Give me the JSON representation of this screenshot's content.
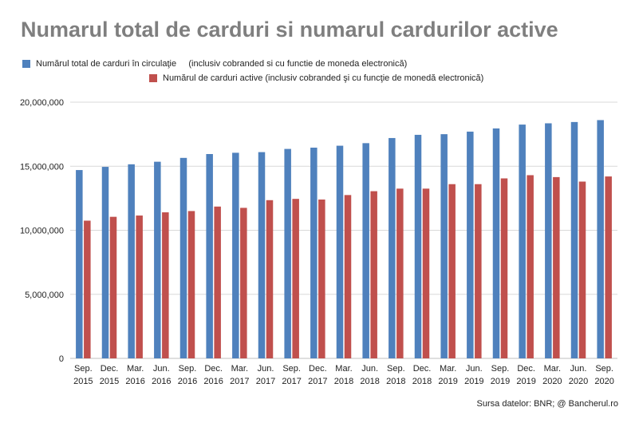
{
  "chart_data": {
    "type": "bar",
    "title": "Numarul total de carduri si numarul cardurilor active",
    "xlabel": "",
    "ylabel": "",
    "ylim": [
      0,
      20000000
    ],
    "yticks": [
      0,
      5000000,
      10000000,
      15000000,
      20000000
    ],
    "ytick_labels": [
      "0",
      "5,000,000",
      "10,000,000",
      "15,000,000",
      "20,000,000"
    ],
    "grid": true,
    "legend_placement": "top-left",
    "categories": [
      [
        "Sep.",
        "2015"
      ],
      [
        "Dec.",
        "2015"
      ],
      [
        "Mar.",
        "2016"
      ],
      [
        "Jun.",
        "2016"
      ],
      [
        "Sep.",
        "2016"
      ],
      [
        "Dec.",
        "2016"
      ],
      [
        "Mar.",
        "2017"
      ],
      [
        "Jun.",
        "2017"
      ],
      [
        "Sep.",
        "2017"
      ],
      [
        "Dec.",
        "2017"
      ],
      [
        "Mar.",
        "2018"
      ],
      [
        "Jun.",
        "2018"
      ],
      [
        "Sep.",
        "2018"
      ],
      [
        "Dec.",
        "2018"
      ],
      [
        "Mar.",
        "2019"
      ],
      [
        "Jun.",
        "2019"
      ],
      [
        "Sep.",
        "2019"
      ],
      [
        "Dec.",
        "2019"
      ],
      [
        "Mar.",
        "2020"
      ],
      [
        "Jun.",
        "2020"
      ],
      [
        "Sep.",
        "2020"
      ]
    ],
    "series": [
      {
        "name": "Numărul total de carduri în circulaţie     (inclusiv cobranded si cu functie de moneda electronică)",
        "color": "#4f81bd",
        "values": [
          14700000,
          14950000,
          15150000,
          15350000,
          15650000,
          15950000,
          16050000,
          16100000,
          16350000,
          16450000,
          16600000,
          16800000,
          17200000,
          17450000,
          17500000,
          17700000,
          17950000,
          18250000,
          18350000,
          18450000,
          18600000
        ]
      },
      {
        "name": "Numărul de carduri active (inclusiv cobranded şi cu funcţie de monedă electronică)",
        "color": "#c0504d",
        "values": [
          10750000,
          11050000,
          11150000,
          11400000,
          11500000,
          11850000,
          11750000,
          12350000,
          12450000,
          12400000,
          12750000,
          13050000,
          13250000,
          13250000,
          13600000,
          13600000,
          14050000,
          14300000,
          14150000,
          13800000,
          14200000
        ]
      }
    ],
    "source": "Sursa datelor: BNR; @ Bancherul.ro"
  }
}
